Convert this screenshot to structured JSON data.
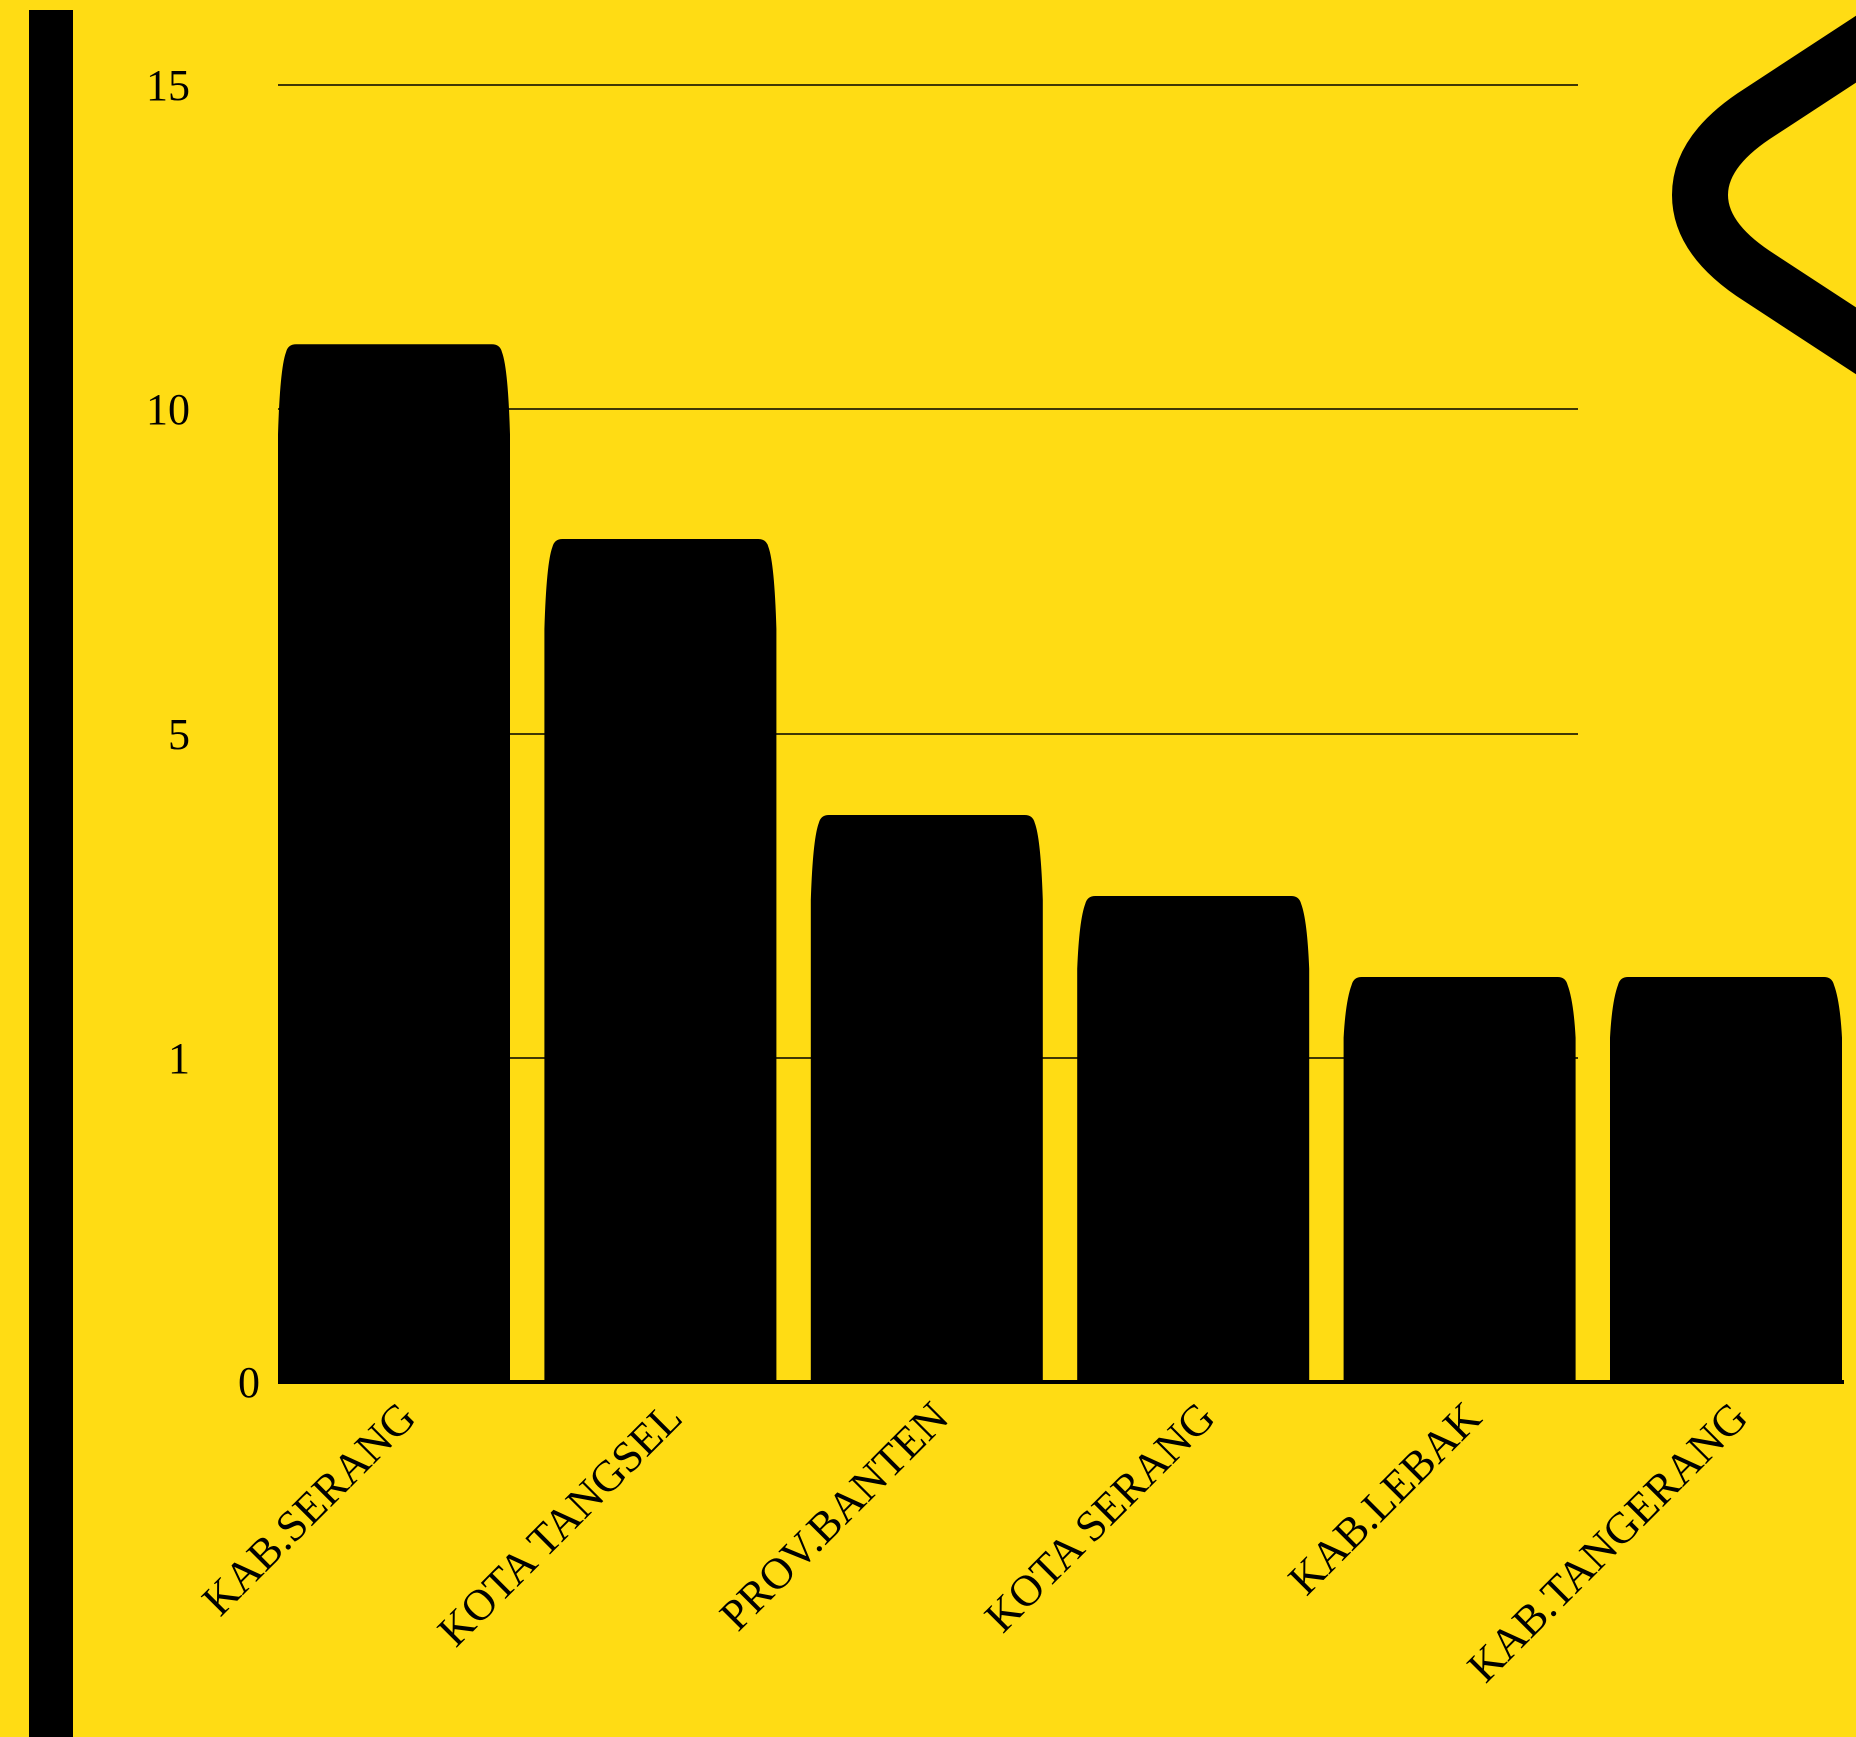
{
  "colors": {
    "background": "#FFDC14",
    "bar": "#000000",
    "text": "#000000",
    "gridline": "#000000"
  },
  "decoration": {
    "icon": "chevron-left-icon"
  },
  "chart_data": {
    "type": "bar",
    "title": "",
    "xlabel": "",
    "ylabel": "",
    "scale": "custom-piecewise",
    "yticks": [
      0,
      1,
      5,
      10,
      15
    ],
    "ylim": [
      0,
      15
    ],
    "grid": true,
    "categories": [
      "KAB.SERANG",
      "KOTA TANGSEL",
      "PROV.BANTEN",
      "KOTA SERANG",
      "KAB.LEBAK",
      "KAB.TANGERANG"
    ],
    "values": [
      11,
      8,
      4,
      3,
      2,
      2
    ]
  }
}
